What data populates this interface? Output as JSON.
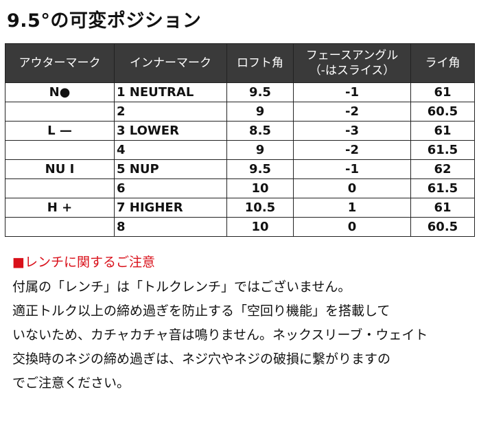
{
  "title": "9.5°の可変ポジション",
  "table": {
    "headers": {
      "outer": "アウターマーク",
      "inner": "インナーマーク",
      "loft": "ロフト角",
      "face_line1": "フェースアングル",
      "face_line2": "（-はスライス）",
      "lie": "ライ角"
    },
    "rows": [
      {
        "outer": "N●",
        "inner": "1 NEUTRAL",
        "loft": "9.5",
        "face": "-1",
        "lie": "61"
      },
      {
        "outer": "",
        "inner": "2",
        "loft": "9",
        "face": "-2",
        "lie": "60.5"
      },
      {
        "outer": "L —",
        "inner": "3 LOWER",
        "loft": "8.5",
        "face": "-3",
        "lie": "61"
      },
      {
        "outer": "",
        "inner": "4",
        "loft": "9",
        "face": "-2",
        "lie": "61.5"
      },
      {
        "outer": "NU I",
        "inner": "5 NUP",
        "loft": "9.5",
        "face": "-1",
        "lie": "62"
      },
      {
        "outer": "",
        "inner": "6",
        "loft": "10",
        "face": "0",
        "lie": "61.5"
      },
      {
        "outer": "H +",
        "inner": "7 HIGHER",
        "loft": "10.5",
        "face": "1",
        "lie": "61"
      },
      {
        "outer": "",
        "inner": "8",
        "loft": "10",
        "face": "0",
        "lie": "60.5"
      }
    ]
  },
  "notice": {
    "title": "■レンチに関するご注意",
    "lines": [
      "付属の「レンチ」は「トルクレンチ」ではございません。",
      "適正トルク以上の締め過ぎを防止する「空回り機能」を搭載して",
      "いないため、カチャカチャ音は鳴りません。ネックスリーブ・ウェイト",
      "交換時のネジの締め過ぎは、ネジ穴やネジの破損に繋がりますの",
      "でご注意ください。"
    ]
  }
}
